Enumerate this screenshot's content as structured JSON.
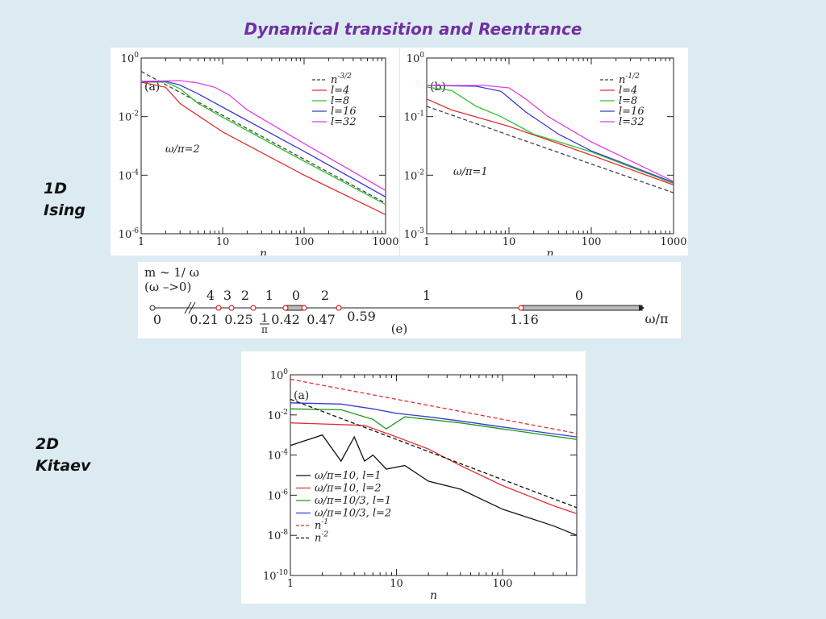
{
  "slide": {
    "title": "Dynamical transition and Reentrance",
    "label_1d": [
      "1D",
      "Ising"
    ],
    "label_2d": [
      "2D",
      "Kitaev"
    ]
  },
  "colors": {
    "background": "#dcebf2",
    "title": "#7030a0",
    "l4": "#e03030",
    "l8": "#30c030",
    "l16": "#3a3ad0",
    "l32": "#e040e0",
    "ref": "#444444"
  },
  "chart_data": [
    {
      "type": "line",
      "panel": "(a)",
      "annotation": "ω/π=2",
      "xlabel": "n",
      "ylabel": "",
      "xscale": "log",
      "yscale": "log",
      "xlim": [
        1,
        1000
      ],
      "ylim": [
        1e-06,
        1
      ],
      "xticks": [
        "1",
        "10",
        "100",
        "1000"
      ],
      "yticks": [
        "10^0",
        "10^-2",
        "10^-4",
        "10^-6"
      ],
      "legend_position": "top-right",
      "series": [
        {
          "name": "n^-3/2",
          "style": "dashed",
          "x": [
            1,
            1000
          ],
          "y": [
            0.35,
            1.11e-05
          ]
        },
        {
          "name": "l=4",
          "x": [
            1,
            2,
            3,
            10,
            100,
            1000
          ],
          "y": [
            0.15,
            0.1,
            0.028,
            0.003,
            0.0001,
            4.5e-06
          ]
        },
        {
          "name": "l=8",
          "x": [
            1,
            2,
            3,
            5,
            10,
            100,
            1000
          ],
          "y": [
            0.15,
            0.15,
            0.09,
            0.028,
            0.0095,
            0.0003,
            1e-05
          ]
        },
        {
          "name": "l=16",
          "x": [
            1,
            2,
            3,
            5,
            10,
            100,
            1000
          ],
          "y": [
            0.15,
            0.16,
            0.12,
            0.06,
            0.021,
            0.00065,
            1.8e-05
          ]
        },
        {
          "name": "l=32",
          "x": [
            1,
            3,
            5,
            8,
            12,
            20,
            100,
            1000
          ],
          "y": [
            0.16,
            0.17,
            0.14,
            0.1,
            0.055,
            0.017,
            0.0012,
            3e-05
          ]
        }
      ]
    },
    {
      "type": "line",
      "panel": "(b)",
      "annotation": "ω/π=1",
      "xlabel": "n",
      "ylabel": "",
      "xscale": "log",
      "yscale": "log",
      "xlim": [
        1,
        1000
      ],
      "ylim": [
        0.001,
        1
      ],
      "xticks": [
        "1",
        "10",
        "100",
        "1000"
      ],
      "yticks": [
        "10^0",
        "10^-1",
        "10^-2",
        "10^-3"
      ],
      "legend_position": "top-right",
      "series": [
        {
          "name": "n^-1/2",
          "style": "dashed",
          "x": [
            1,
            1000
          ],
          "y": [
            0.15,
            0.005
          ]
        },
        {
          "name": "l=4",
          "x": [
            1,
            2,
            5,
            10,
            30,
            100,
            1000
          ],
          "y": [
            0.2,
            0.13,
            0.09,
            0.068,
            0.04,
            0.022,
            0.0068
          ]
        },
        {
          "name": "l=8",
          "x": [
            1,
            2,
            4,
            8,
            20,
            100,
            1000
          ],
          "y": [
            0.32,
            0.28,
            0.15,
            0.1,
            0.05,
            0.025,
            0.0072
          ]
        },
        {
          "name": "l=16",
          "x": [
            1,
            4,
            8,
            16,
            40,
            100,
            1000
          ],
          "y": [
            0.34,
            0.33,
            0.27,
            0.12,
            0.05,
            0.026,
            0.0075
          ]
        },
        {
          "name": "l=32",
          "x": [
            1,
            5,
            10,
            16,
            30,
            100,
            1000
          ],
          "y": [
            0.34,
            0.34,
            0.31,
            0.2,
            0.1,
            0.037,
            0.0078
          ]
        }
      ]
    },
    {
      "type": "line",
      "panel": "(a)",
      "xlabel": "n",
      "ylabel": "",
      "xscale": "log",
      "yscale": "log",
      "xlim": [
        1,
        500
      ],
      "ylim": [
        1e-10,
        1
      ],
      "xticks": [
        "1",
        "10",
        "100"
      ],
      "yticks": [
        "10^0",
        "10^-2",
        "10^-4",
        "10^-6",
        "10^-8",
        "10^-10"
      ],
      "legend_position": "bottom-left",
      "series": [
        {
          "name": "ω/π=10, l=1",
          "x": [
            1,
            2,
            3,
            4,
            5,
            6,
            8,
            12,
            20,
            40,
            100,
            300,
            500
          ],
          "y": [
            0.0003,
            0.001,
            5e-05,
            0.0008,
            5e-05,
            0.0001,
            2e-05,
            3e-05,
            5e-06,
            2e-06,
            2e-07,
            3e-08,
            1e-08
          ]
        },
        {
          "name": "ω/π=10, l=2",
          "x": [
            1,
            5,
            10,
            20,
            40,
            100,
            300,
            500
          ],
          "y": [
            0.004,
            0.003,
            0.0008,
            0.0002,
            3e-05,
            3e-06,
            3e-07,
            1.2e-07
          ]
        },
        {
          "name": "ω/π=10/3, l=1",
          "x": [
            1,
            3,
            6,
            8,
            12,
            20,
            40,
            100,
            500
          ],
          "y": [
            0.02,
            0.018,
            0.006,
            0.002,
            0.008,
            0.006,
            0.004,
            0.002,
            0.0006
          ]
        },
        {
          "name": "ω/π=10/3, l=2",
          "x": [
            1,
            3,
            6,
            10,
            20,
            40,
            100,
            500
          ],
          "y": [
            0.04,
            0.035,
            0.02,
            0.012,
            0.008,
            0.005,
            0.0025,
            0.0008
          ]
        },
        {
          "name": "n^-1",
          "style": "dashed",
          "x": [
            1,
            500
          ],
          "y": [
            0.6,
            0.0012
          ]
        },
        {
          "name": "n^-2",
          "style": "dashed",
          "x": [
            1,
            500
          ],
          "y": [
            0.06,
            2.4e-07
          ]
        }
      ]
    }
  ],
  "phase_diagram": {
    "axis_title_1": "m ~ 1/ ω",
    "axis_title_2": "(ω –>0)",
    "panel": "(e)",
    "axis_label": "ω/π",
    "regions": [
      "4",
      "3",
      "2",
      "1",
      "0",
      "2",
      "1",
      "0"
    ],
    "ticks": [
      "0",
      "0.21",
      "0.25",
      "1",
      "π",
      "0.42",
      "0.47",
      "0.59",
      "1.16"
    ]
  }
}
